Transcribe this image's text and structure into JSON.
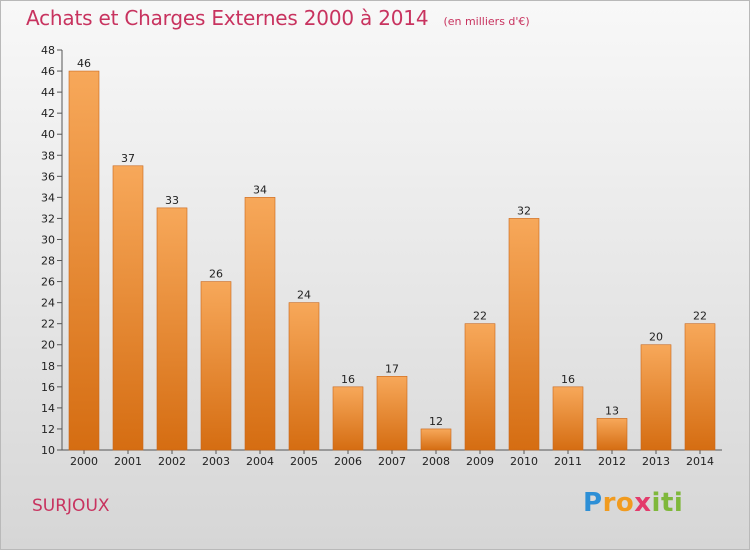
{
  "chart_data": {
    "type": "bar",
    "title": "Achats et Charges Externes 2000 à 2014",
    "unit_note": "(en milliers d'€)",
    "categories": [
      "2000",
      "2001",
      "2002",
      "2003",
      "2004",
      "2005",
      "2006",
      "2007",
      "2008",
      "2009",
      "2010",
      "2011",
      "2012",
      "2013",
      "2014"
    ],
    "values": [
      46,
      37,
      33,
      26,
      34,
      24,
      16,
      17,
      12,
      22,
      32,
      16,
      13,
      20,
      22
    ],
    "ylim": [
      10,
      48
    ],
    "yticks": [
      10,
      12,
      14,
      16,
      18,
      20,
      22,
      24,
      26,
      28,
      30,
      32,
      34,
      36,
      38,
      40,
      42,
      44,
      46,
      48
    ],
    "grid": false,
    "bar_color": "#f08a2c"
  },
  "footer": {
    "town": "SURJOUX",
    "brand_parts": [
      "P",
      "ro",
      "x",
      "iti"
    ]
  }
}
